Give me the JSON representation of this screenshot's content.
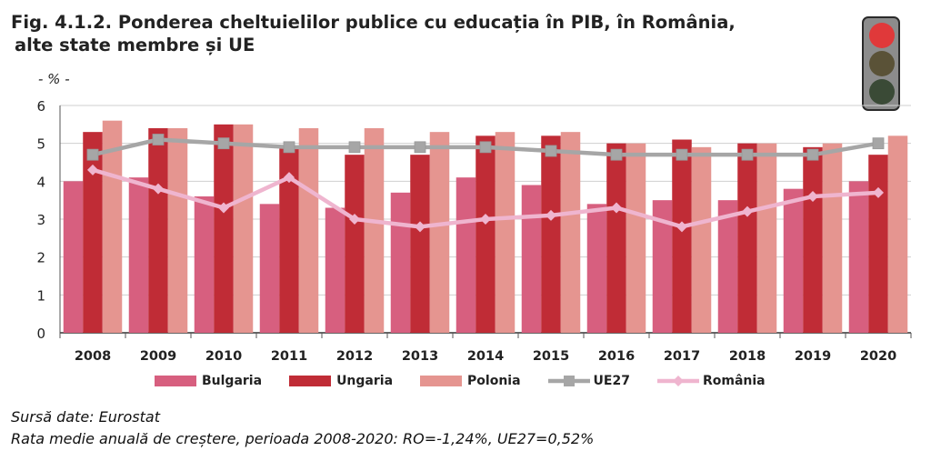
{
  "title": {
    "line1": "Fig. 4.1.2. Ponderea cheltuielilor publice cu educația în PIB, în România,",
    "line2": "alte state membre și UE"
  },
  "unit_label": "- % -",
  "chart_data": {
    "type": "bar",
    "categories": [
      "2008",
      "2009",
      "2010",
      "2011",
      "2012",
      "2013",
      "2014",
      "2015",
      "2016",
      "2017",
      "2018",
      "2019",
      "2020"
    ],
    "ylim": [
      0,
      6
    ],
    "yticks": [
      0,
      1,
      2,
      3,
      4,
      5,
      6
    ],
    "grid": true,
    "legend_position": "bottom",
    "series": [
      {
        "name": "Bulgaria",
        "kind": "bar",
        "color": "#d75f7f",
        "values": [
          4.0,
          4.1,
          3.6,
          3.4,
          3.3,
          3.7,
          4.1,
          3.9,
          3.4,
          3.5,
          3.5,
          3.8,
          4.0
        ]
      },
      {
        "name": "Ungaria",
        "kind": "bar",
        "color": "#c02c36",
        "values": [
          5.3,
          5.4,
          5.5,
          4.9,
          4.7,
          4.7,
          5.2,
          5.2,
          5.0,
          5.1,
          5.0,
          4.9,
          4.7
        ]
      },
      {
        "name": "Polonia",
        "kind": "bar",
        "color": "#e59590",
        "values": [
          5.6,
          5.4,
          5.5,
          5.4,
          5.4,
          5.3,
          5.3,
          5.3,
          5.0,
          4.9,
          5.0,
          5.0,
          5.2
        ]
      },
      {
        "name": "UE27",
        "kind": "line",
        "color": "#a6a6a6",
        "marker": "square",
        "values": [
          4.7,
          5.1,
          5.0,
          4.9,
          4.9,
          4.9,
          4.9,
          4.8,
          4.7,
          4.7,
          4.7,
          4.7,
          5.0
        ]
      },
      {
        "name": "România",
        "kind": "line",
        "color": "#efb5cf",
        "marker": "diamond",
        "values": [
          4.3,
          3.8,
          3.3,
          4.1,
          3.0,
          2.8,
          3.0,
          3.1,
          3.3,
          2.8,
          3.2,
          3.6,
          3.7
        ]
      }
    ]
  },
  "source": {
    "line1": "Sursă date: Eurostat",
    "line2": "Rata medie anuală de creștere, perioada 2008-2020: RO=-1,24%, UE27=0,52%"
  },
  "indicator": {
    "active": "red"
  }
}
